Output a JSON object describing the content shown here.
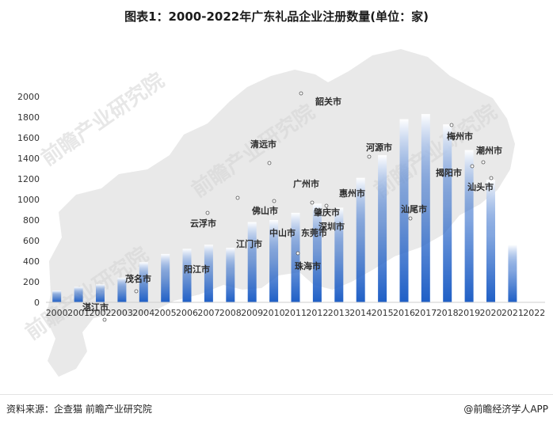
{
  "title": "图表1：2000-2022年广东礼品企业注册数量(单位：家)",
  "footer": {
    "source": "资料来源：企查猫 前瞻产业研究院",
    "brand": "@前瞻经济学人APP"
  },
  "watermark": "前瞻产业研究院",
  "colors": {
    "bar_bottom": "#1f5fc6",
    "bar_top": "#ffffff",
    "axis_text": "#333333",
    "map_fill": "#e9e9e9",
    "city_text": "#2b2b2b"
  },
  "chart_data": {
    "type": "bar",
    "title": "图表1：2000-2022年广东礼品企业注册数量(单位：家)",
    "xlabel": "",
    "ylabel": "",
    "ylim": [
      0,
      2000
    ],
    "yticks": [
      0,
      200,
      400,
      600,
      800,
      1000,
      1200,
      1400,
      1600,
      1800,
      2000
    ],
    "grid": false,
    "categories": [
      "2000",
      "2001",
      "2002",
      "2003",
      "2004",
      "2005",
      "2006",
      "2007",
      "2008",
      "2009",
      "2010",
      "2011",
      "2012",
      "2013",
      "2014",
      "2015",
      "2016",
      "2017",
      "2018",
      "2019",
      "2020",
      "2021",
      "2022"
    ],
    "values": [
      115,
      150,
      175,
      240,
      390,
      470,
      520,
      560,
      530,
      780,
      800,
      870,
      960,
      920,
      1210,
      1430,
      1780,
      1830,
      1730,
      1480,
      1190,
      560,
      0
    ],
    "annotations": [
      "韶关市",
      "梅州市",
      "潮州市",
      "清远市",
      "河源市",
      "揭阳市",
      "汕头市",
      "肇庆市",
      "广州市",
      "惠州市",
      "佛山市",
      "东莞市",
      "汕尾市",
      "云浮市",
      "中山市",
      "深圳市",
      "江门市",
      "阳江市",
      "珠海市",
      "茂名市",
      "湛江市"
    ]
  }
}
